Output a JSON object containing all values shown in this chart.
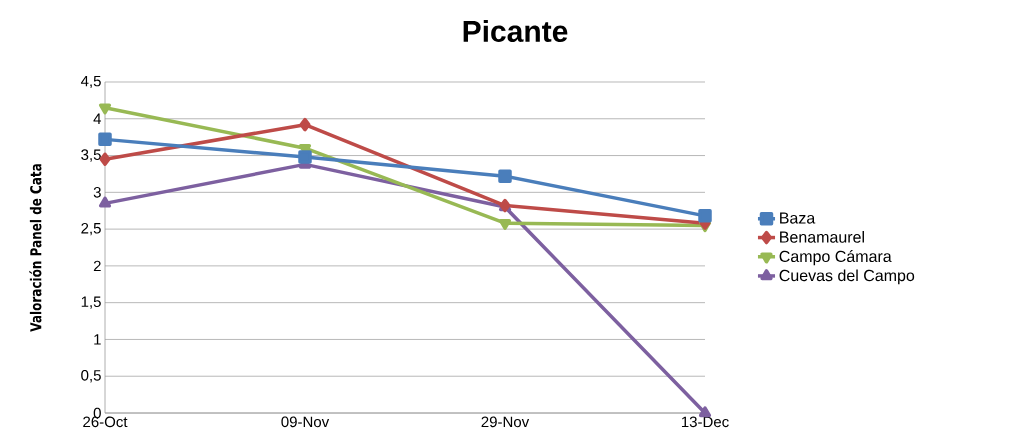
{
  "chart_data": {
    "type": "line",
    "title": "Picante",
    "ylabel": "Valoración Panel de Cata",
    "categories": [
      "26-Oct",
      "09-Nov",
      "29-Nov",
      "13-Dec"
    ],
    "series": [
      {
        "name": "Baza",
        "color": "#4a7ebb",
        "marker": "square",
        "values": [
          3.72,
          3.48,
          3.22,
          2.68
        ]
      },
      {
        "name": "Benamaurel",
        "color": "#be4b48",
        "marker": "diamond",
        "values": [
          3.45,
          3.92,
          2.82,
          2.58
        ]
      },
      {
        "name": "Campo Cámara",
        "color": "#98b954",
        "marker": "triangle-down",
        "values": [
          4.15,
          3.6,
          2.58,
          2.55
        ]
      },
      {
        "name": "Cuevas del Campo",
        "color": "#7d60a0",
        "marker": "triangle",
        "values": [
          2.85,
          3.38,
          2.8,
          0
        ]
      }
    ],
    "ylim": [
      0,
      4.5
    ],
    "yticks": [
      0,
      {
        "value": 0.5,
        "label": "0,5"
      },
      1,
      {
        "value": 1.5,
        "label": "1,5"
      },
      2,
      {
        "value": 2.5,
        "label": "2,5"
      },
      3,
      {
        "value": 3.5,
        "label": "3,5"
      },
      4,
      {
        "value": 4.5,
        "label": "4,5"
      }
    ],
    "grid": "y",
    "legend": "right",
    "line_style": "solid"
  }
}
